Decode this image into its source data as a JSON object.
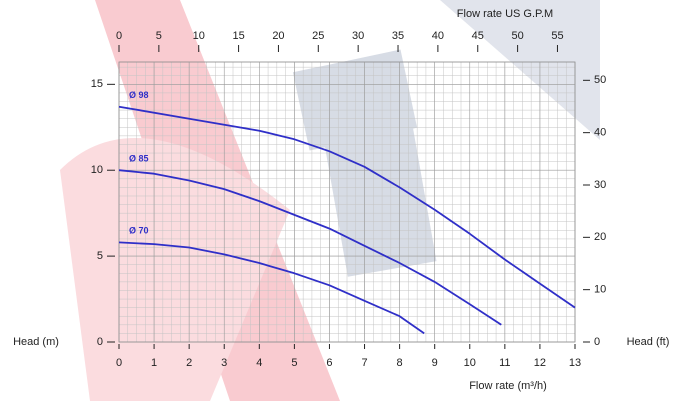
{
  "chart_data": {
    "type": "line",
    "x_label": "Flow rate (m³/h)",
    "x2_label": "Flow rate US  G.P.M",
    "y_label": "Head (m)",
    "y2_label": "Head (ft)",
    "xlim": [
      0,
      13
    ],
    "xticks": [
      0,
      1,
      2,
      3,
      4,
      5,
      6,
      7,
      8,
      9,
      10,
      11,
      12,
      13
    ],
    "ylim": [
      0,
      16.3
    ],
    "yticks": [
      0,
      5,
      10,
      15
    ],
    "x2lim": [
      0,
      57.2
    ],
    "x2ticks": [
      0,
      5,
      10,
      15,
      20,
      25,
      30,
      35,
      40,
      45,
      50,
      55
    ],
    "y2lim": [
      0,
      53.5
    ],
    "y2ticks": [
      0,
      10,
      20,
      30,
      40,
      50
    ],
    "grid": true,
    "series": [
      {
        "name": "Ø 98",
        "color": "#2f2fc8",
        "x": [
          0,
          2,
          4,
          5,
          6,
          7,
          8,
          9,
          10,
          11,
          12,
          13
        ],
        "values": [
          13.7,
          13.0,
          12.3,
          11.8,
          11.1,
          10.2,
          9.0,
          7.7,
          6.3,
          4.8,
          3.4,
          2.0
        ]
      },
      {
        "name": "Ø 85",
        "color": "#2f2fc8",
        "x": [
          0,
          1,
          2,
          3,
          4,
          5,
          6,
          7,
          8,
          9,
          10,
          10.9
        ],
        "values": [
          10.0,
          9.8,
          9.4,
          8.9,
          8.2,
          7.4,
          6.6,
          5.6,
          4.6,
          3.5,
          2.2,
          1.0
        ]
      },
      {
        "name": "Ø 70",
        "color": "#2f2fc8",
        "x": [
          0,
          1,
          2,
          3,
          4,
          5,
          6,
          7,
          8,
          8.7
        ],
        "values": [
          5.8,
          5.7,
          5.5,
          5.1,
          4.6,
          4.0,
          3.3,
          2.4,
          1.5,
          0.5
        ]
      }
    ]
  }
}
